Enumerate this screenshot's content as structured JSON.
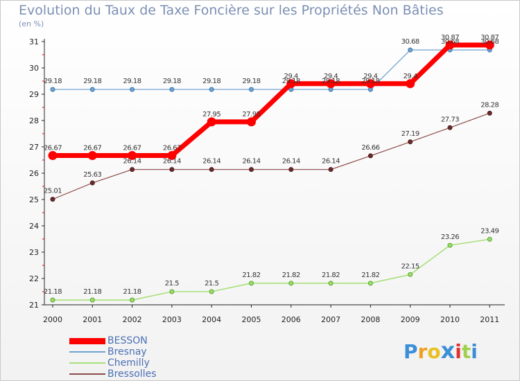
{
  "chart_data": {
    "type": "line",
    "title": "Evolution du Taux de Taxe Foncière sur les Propriétés Non Bâties",
    "subtitle": "(en %)",
    "categories": [
      "2000",
      "2001",
      "2002",
      "2003",
      "2004",
      "2005",
      "2006",
      "2007",
      "2008",
      "2009",
      "2010",
      "2011"
    ],
    "ylim": [
      21,
      31
    ],
    "yticks": [
      21,
      22,
      23,
      24,
      25,
      26,
      27,
      28,
      29,
      30,
      31
    ],
    "series": [
      {
        "name": "BESSON",
        "color": "#ff0000",
        "values": [
          26.67,
          26.67,
          26.67,
          26.67,
          27.95,
          27.95,
          29.4,
          29.4,
          29.4,
          29.4,
          30.87,
          30.87
        ],
        "labels": [
          "26.67",
          "26.67",
          "26.67",
          "26.67",
          "27.95",
          "27.95",
          "29.4",
          "29.4",
          "29.4",
          "29.4",
          "30.87",
          "30.87"
        ]
      },
      {
        "name": "Bresnay",
        "color": "#6fa3d0",
        "values": [
          29.18,
          29.18,
          29.18,
          29.18,
          29.18,
          29.18,
          29.18,
          29.18,
          29.18,
          30.68,
          30.68,
          30.68
        ],
        "labels": [
          "29.18",
          "29.18",
          "29.18",
          "29.18",
          "29.18",
          "29.18",
          "29.18",
          "29.18",
          "29.18",
          "30.68",
          "30.68",
          "30.68"
        ]
      },
      {
        "name": "Chemilly",
        "color": "#a8e07a",
        "values": [
          21.18,
          21.18,
          21.18,
          21.5,
          21.5,
          21.82,
          21.82,
          21.82,
          21.82,
          22.15,
          23.26,
          23.49
        ],
        "labels": [
          "21.18",
          "21.18",
          "21.18",
          "21.5",
          "21.5",
          "21.82",
          "21.82",
          "21.82",
          "21.82",
          "22.15",
          "23.26",
          "23.49"
        ]
      },
      {
        "name": "Bressolles",
        "color": "#8b4a4a",
        "values": [
          25.01,
          25.63,
          26.14,
          26.14,
          26.14,
          26.14,
          26.14,
          26.14,
          26.66,
          27.19,
          27.73,
          28.28
        ],
        "labels": [
          "25.01",
          "25.63",
          "26.14",
          "26.14",
          "26.14",
          "26.14",
          "26.14",
          "26.14",
          "26.66",
          "27.19",
          "27.73",
          "28.28"
        ]
      }
    ]
  },
  "logo": {
    "text": "Proxiti"
  }
}
